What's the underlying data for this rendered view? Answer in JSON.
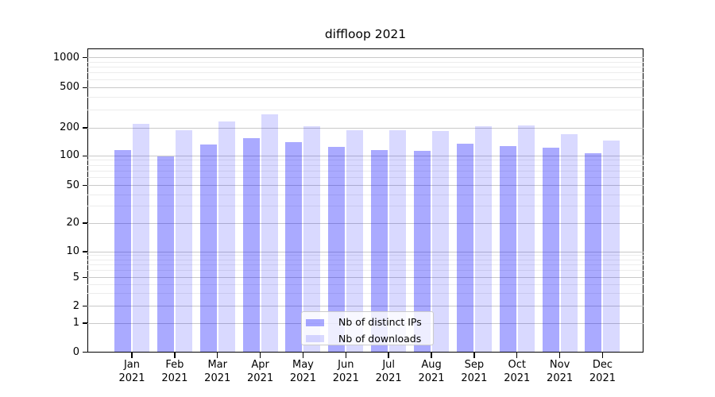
{
  "chart_data": {
    "type": "bar",
    "title": "diffloop 2021",
    "categories": [
      "Jan",
      "Feb",
      "Mar",
      "Apr",
      "May",
      "Jun",
      "Jul",
      "Aug",
      "Sep",
      "Oct",
      "Nov",
      "Dec"
    ],
    "year_label": "2021",
    "series": [
      {
        "name": "Nb of distinct IPs",
        "color": "rgba(0,0,255,0.335)",
        "color_flat": "#aaaaff",
        "values": [
          115,
          98,
          133,
          155,
          140,
          124,
          116,
          114,
          135,
          127,
          122,
          107
        ]
      },
      {
        "name": "Nb of downloads",
        "color": "rgba(0,0,255,0.15)",
        "color_flat": "#d9d9ff",
        "values": [
          217,
          190,
          231,
          272,
          209,
          187,
          187,
          186,
          207,
          210,
          172,
          146
        ]
      }
    ],
    "y_axis": {
      "scale": "symlog",
      "major_ticks": [
        0,
        1,
        2,
        5,
        10,
        20,
        50,
        100,
        200,
        500,
        1000
      ],
      "minor_gridlines": [
        3,
        4,
        6,
        7,
        8,
        9,
        30,
        40,
        60,
        70,
        80,
        90,
        300,
        400,
        600,
        700,
        800,
        900
      ]
    },
    "grid": "on",
    "legend_position": "lower center",
    "colors": {
      "grid_major": "#c9c9c9",
      "grid_minor": "#ececec",
      "spine": "#000000",
      "background": "#ffffff"
    }
  }
}
